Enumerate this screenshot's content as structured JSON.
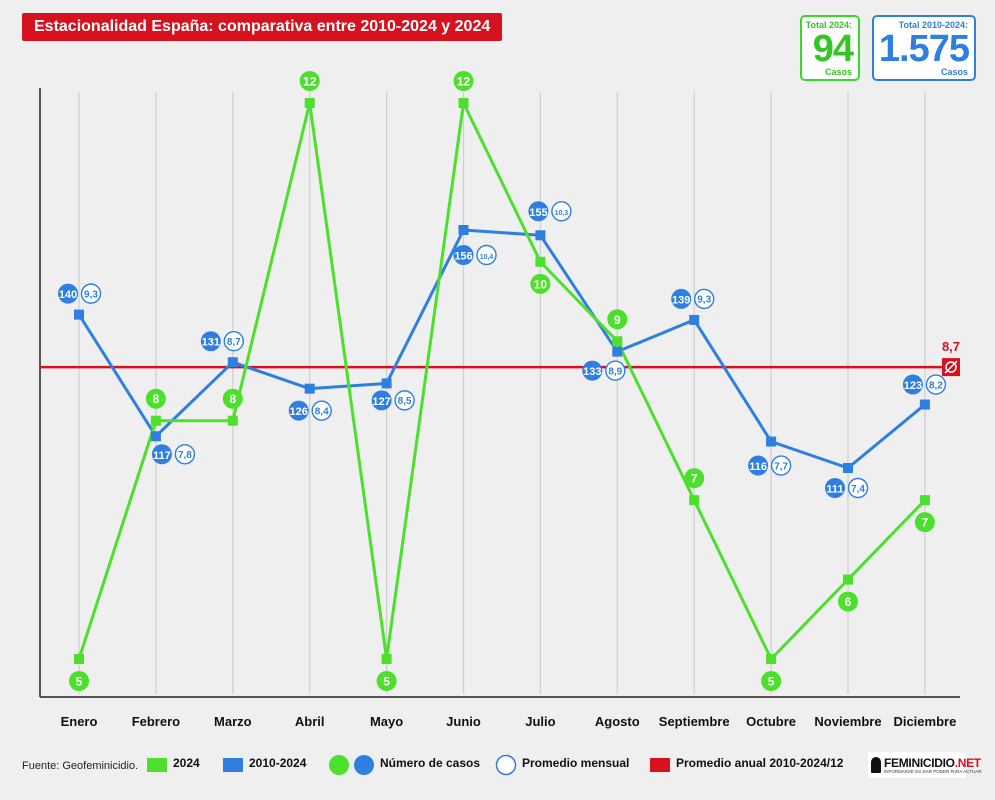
{
  "title": "Estacionalidad España: comparativa entre 2010-2024 y 2024",
  "totals": {
    "t2024": {
      "label": "Total 2024:",
      "value": "94",
      "unit": "Casos",
      "color": "#33c521"
    },
    "tall": {
      "label": "Total 2010-2024:",
      "value": "1.575",
      "unit": "Casos",
      "color": "#2f7fe0"
    }
  },
  "chart_data": {
    "type": "line",
    "categories": [
      "Enero",
      "Febrero",
      "Marzo",
      "Abril",
      "Mayo",
      "Junio",
      "Julio",
      "Agosto",
      "Septiembre",
      "Octubre",
      "Noviembre",
      "Diciembre"
    ],
    "series": [
      {
        "name": "2024",
        "color": "#4ce02c",
        "values": [
          5,
          8,
          8,
          12,
          5,
          12,
          10,
          9,
          7,
          5,
          6,
          7
        ],
        "labels": [
          "5",
          "8",
          "8",
          "12",
          "5",
          "12",
          "10",
          "9",
          "7",
          "5",
          "6",
          "7"
        ]
      },
      {
        "name": "2010-2024",
        "color": "#2f7fe0",
        "values": [
          140,
          117,
          131,
          126,
          127,
          156,
          155,
          133,
          139,
          116,
          111,
          123
        ],
        "labels": [
          "140",
          "117",
          "131",
          "126",
          "127",
          "156",
          "155",
          "133",
          "139",
          "116",
          "111",
          "123"
        ],
        "averages": [
          "9,3",
          "7,8",
          "8,7",
          "8,4",
          "8,5",
          "10,4",
          "10,3",
          "8,9",
          "9,3",
          "7,7",
          "7,4",
          "8,2"
        ]
      }
    ],
    "reference_line": {
      "name": "Promedio anual 2010-2024/12",
      "value": 8.7,
      "label": "8,7",
      "color": "#d6121f"
    },
    "grid": true
  },
  "legend": {
    "s2024": "2024",
    "sall": "2010-2024",
    "cases": "Número de casos",
    "monthly_avg": "Promedio mensual",
    "annual_avg": "Promedio anual 2010-2024/12"
  },
  "source": "Fuente: Geofeminicidio.",
  "brand": {
    "name_main": "FEMINICIDIO",
    "name_tld": ".NET",
    "tagline": "INFORMARSE ES DAR PODER PARA ACTUAR"
  }
}
